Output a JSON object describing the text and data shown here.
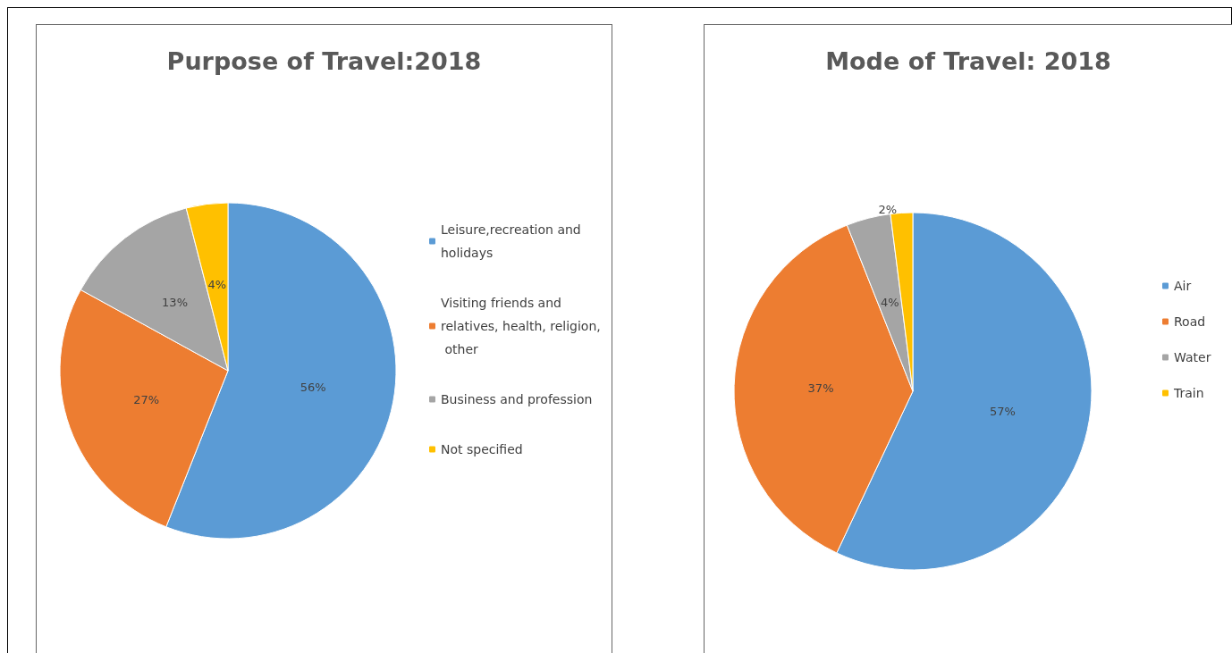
{
  "chart_data": [
    {
      "type": "pie",
      "title": "Purpose of Travel:2018",
      "categories": [
        "Leisure,recreation and holidays",
        "Visiting friends and relatives, health, religion, other",
        "Business and profession",
        "Not specified"
      ],
      "values": [
        56,
        27,
        13,
        4
      ],
      "colors": [
        "#5b9bd5",
        "#ed7d31",
        "#a5a5a5",
        "#ffc000"
      ],
      "value_labels": [
        "56%",
        "27%",
        "13%",
        "4%"
      ],
      "legend": "right"
    },
    {
      "type": "pie",
      "title": "Mode of Travel: 2018",
      "categories": [
        "Air",
        "Road",
        "Water",
        "Train"
      ],
      "values": [
        57,
        37,
        4,
        2
      ],
      "colors": [
        "#5b9bd5",
        "#ed7d31",
        "#a5a5a5",
        "#ffc000"
      ],
      "value_labels": [
        "57%",
        "37%",
        "4%",
        "2%"
      ],
      "legend": "right"
    }
  ]
}
